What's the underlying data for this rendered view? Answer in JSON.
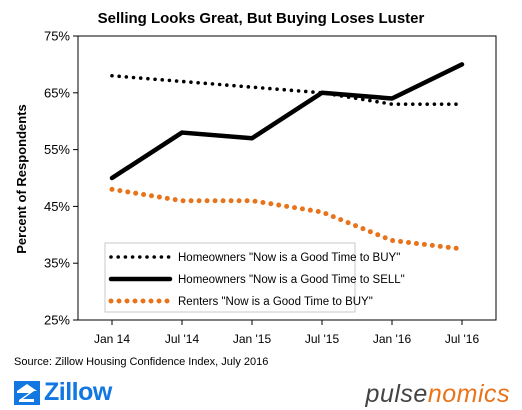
{
  "chart_data": {
    "type": "line",
    "title": "Selling Looks Great, But Buying Loses Luster",
    "ylabel": "Percent of Respondents",
    "xlabel": "",
    "categories": [
      "Jan 14",
      "Jul '14",
      "Jan '15",
      "Jul '15",
      "Jan '16",
      "Jul '16"
    ],
    "x": [
      0,
      0.5,
      1,
      1.5,
      2,
      2.5
    ],
    "ylim": [
      25,
      75
    ],
    "yticks": [
      "25%",
      "35%",
      "45%",
      "55%",
      "65%",
      "75%"
    ],
    "ytick_values": [
      25,
      35,
      45,
      55,
      65,
      75
    ],
    "grid": false,
    "legend_position": "bottom-left",
    "series": [
      {
        "name": "Homeowners \"Now is a Good Time to BUY\"",
        "style": "dotted",
        "color": "#000000",
        "values": [
          68,
          67,
          66,
          65,
          63,
          63
        ]
      },
      {
        "name": "Homeowners \"Now is a Good Time to SELL\"",
        "style": "solid",
        "color": "#000000",
        "values": [
          50,
          58,
          57,
          65,
          64,
          70
        ]
      },
      {
        "name": "Renters \"Now is a Good Time to BUY\"",
        "style": "dotted",
        "color": "#e8731a",
        "values": [
          48,
          46,
          46,
          44,
          39,
          37.5
        ]
      }
    ]
  },
  "source": "Source: Zillow Housing Confidence Index, July 2016",
  "logos": {
    "zillow": "Zillow",
    "pulsenomics_a": "pulse",
    "pulsenomics_b": "nomics"
  },
  "icons": {
    "zillow_mark": "zillow-z-icon"
  }
}
